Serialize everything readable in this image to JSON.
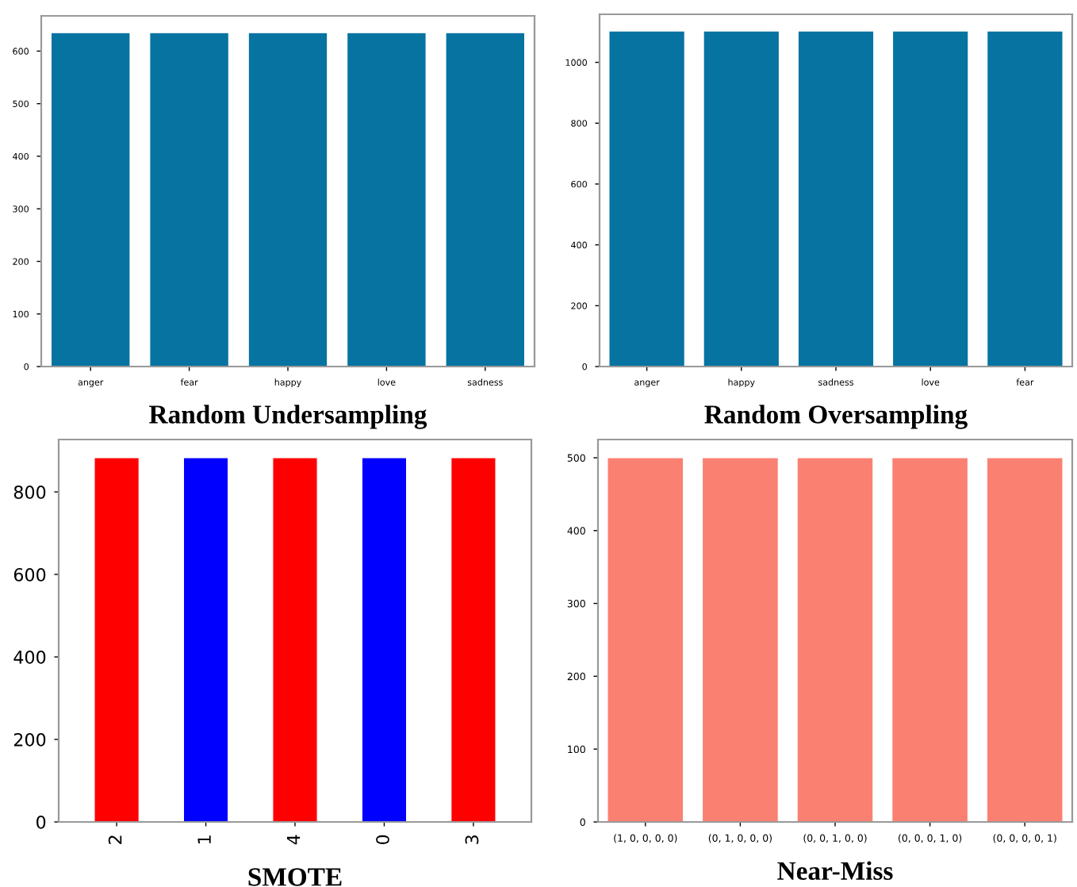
{
  "chart_data": [
    {
      "type": "bar",
      "xlabel": "Random Undersampling",
      "categories": [
        "anger",
        "fear",
        "happy",
        "love",
        "sadness"
      ],
      "values": [
        635,
        635,
        635,
        635,
        635
      ],
      "color": "#0773a1",
      "ylim": [
        0,
        667
      ],
      "yticks": [
        0,
        100,
        200,
        300,
        400,
        500,
        600
      ]
    },
    {
      "type": "bar",
      "xlabel": "Random Oversampling",
      "categories": [
        "anger",
        "happy",
        "sadness",
        "love",
        "fear"
      ],
      "values": [
        1103,
        1103,
        1103,
        1103,
        1103
      ],
      "color": "#0773a1",
      "ylim": [
        0,
        1158
      ],
      "yticks": [
        0,
        200,
        400,
        600,
        800,
        1000
      ]
    },
    {
      "type": "bar",
      "xlabel": "SMOTE",
      "categories": [
        "2",
        "1",
        "4",
        "0",
        "3"
      ],
      "values": [
        883,
        883,
        883,
        883,
        883
      ],
      "colors": [
        "#ff0000",
        "#0000ff",
        "#ff0000",
        "#0000ff",
        "#ff0000"
      ],
      "ylim": [
        0,
        927
      ],
      "yticks": [
        0,
        200,
        400,
        600,
        800
      ]
    },
    {
      "type": "bar",
      "xlabel": "Near-Miss",
      "categories": [
        "(1, 0, 0, 0, 0)",
        "(0, 1, 0, 0, 0)",
        "(0, 0, 1, 0, 0)",
        "(0, 0, 0, 1, 0)",
        "(0, 0, 0, 0, 1)"
      ],
      "values": [
        500,
        500,
        500,
        500,
        500
      ],
      "color": "#fa8072",
      "ylim": [
        0,
        525
      ],
      "yticks": [
        0,
        100,
        200,
        300,
        400,
        500
      ]
    }
  ]
}
